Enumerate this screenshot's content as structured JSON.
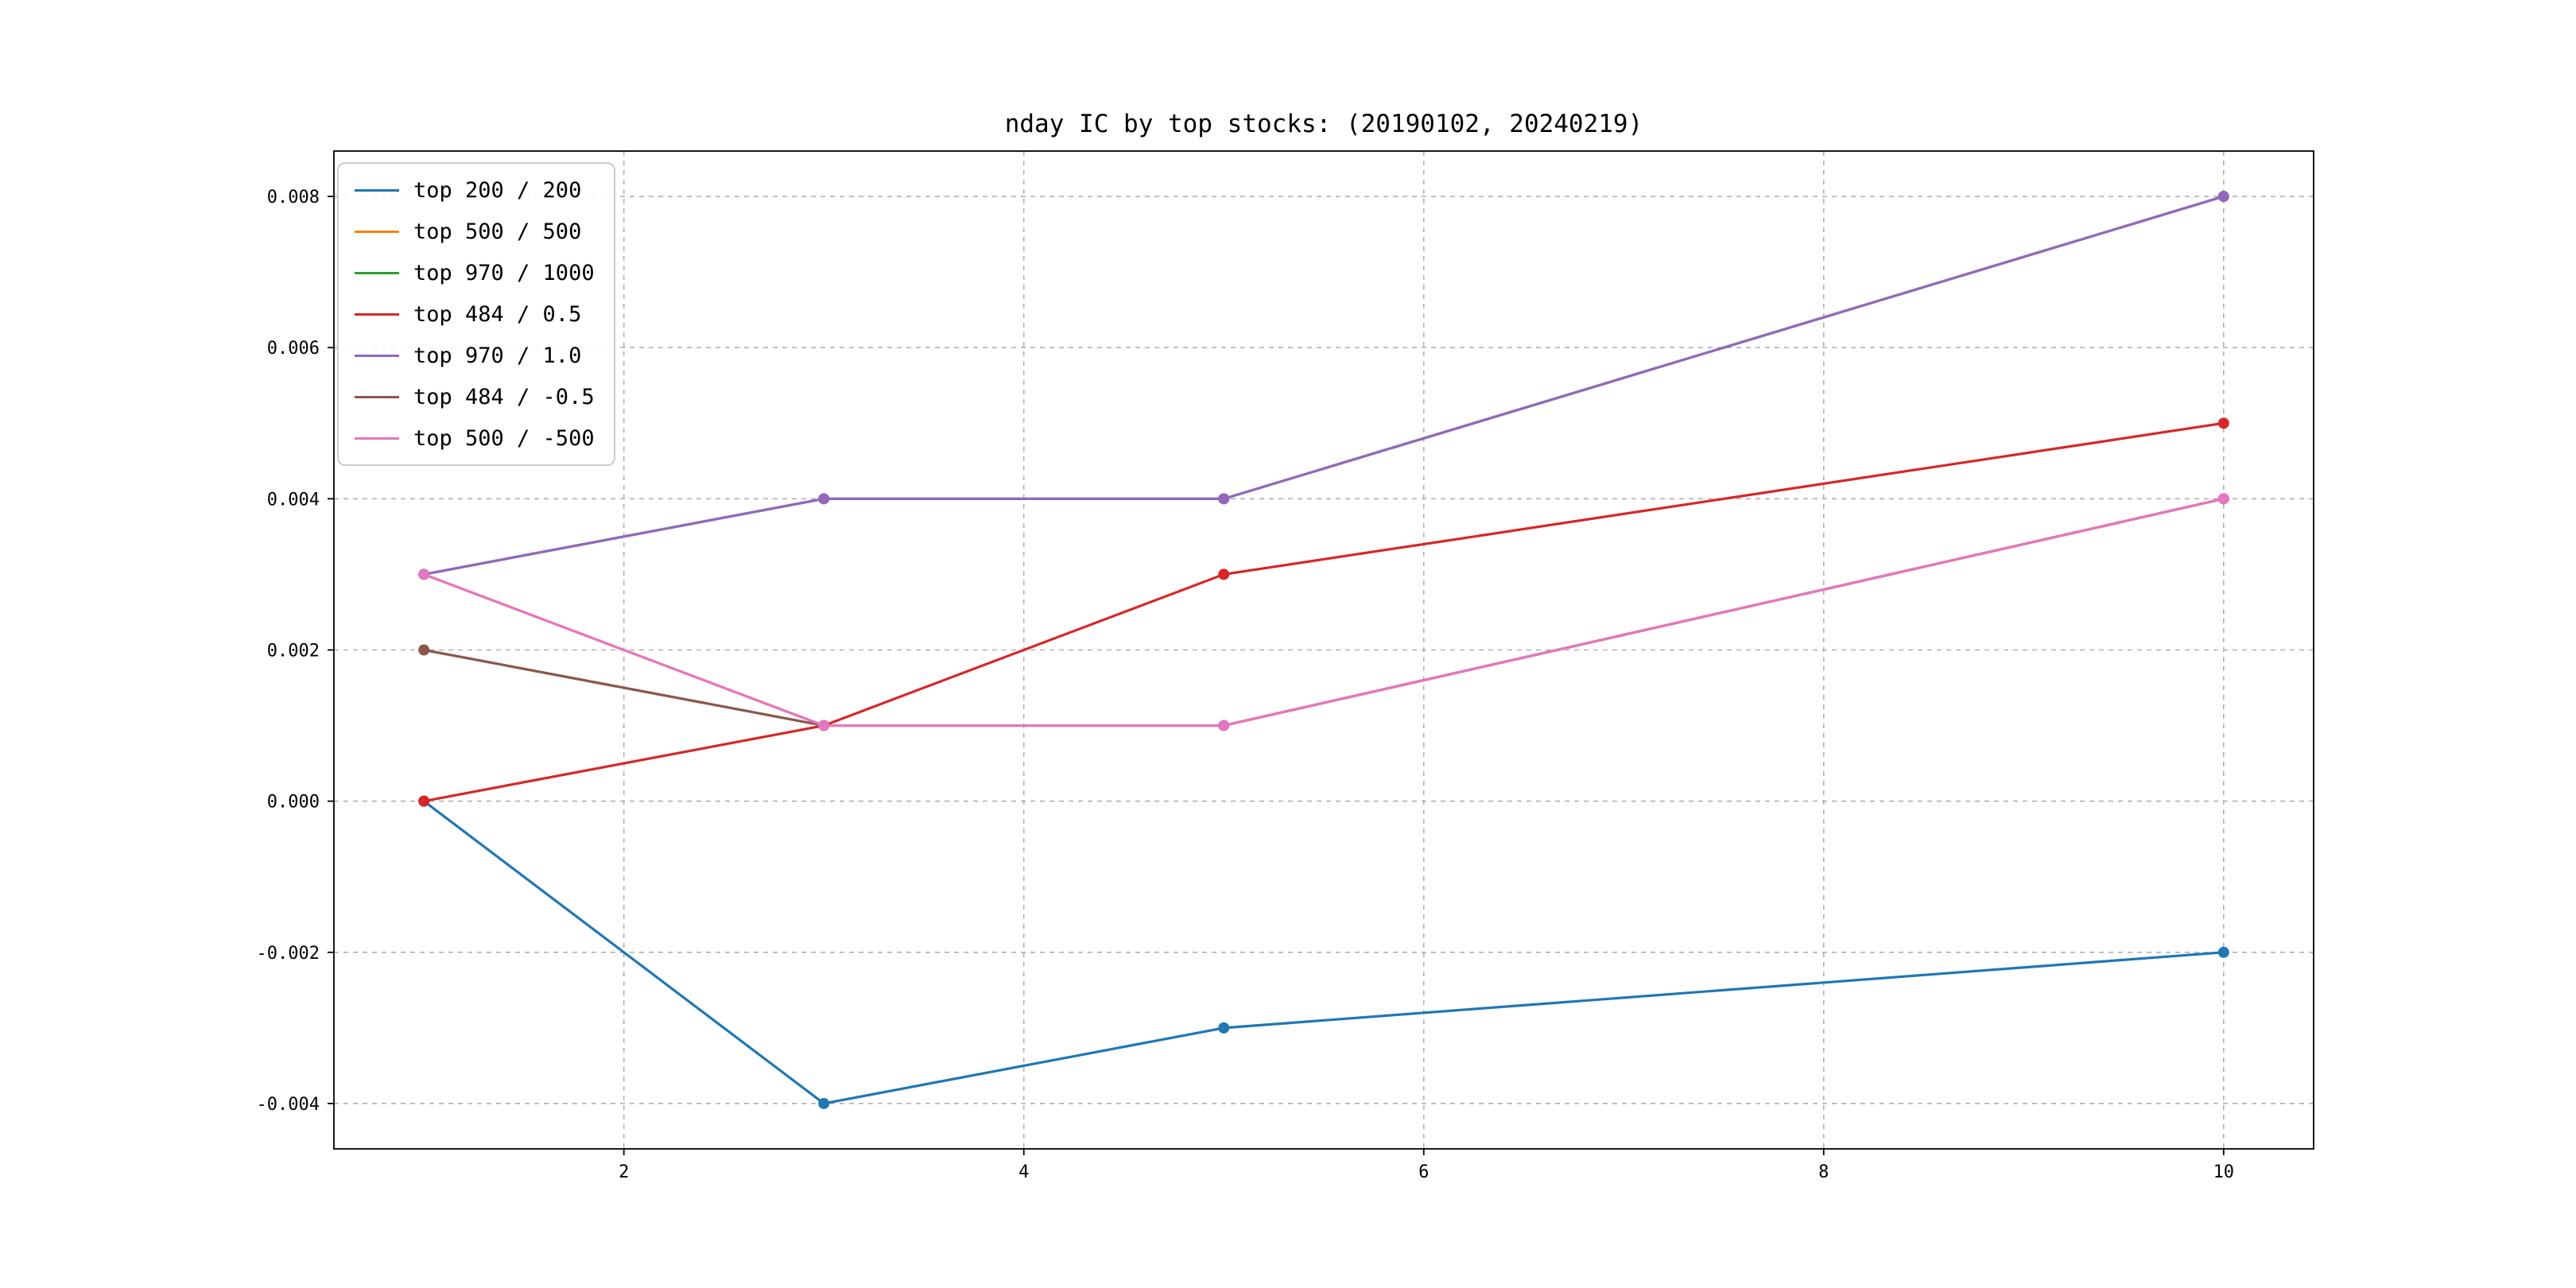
{
  "title": "nday IC by top stocks: (20190102, 20240219)",
  "chart_data": {
    "type": "line",
    "title": "nday IC by top stocks: (20190102, 20240219)",
    "xlabel": "",
    "ylabel": "",
    "x": [
      1,
      3,
      5,
      10
    ],
    "xlim": [
      0.55,
      10.45
    ],
    "ylim": [
      -0.0046,
      0.0086
    ],
    "xticks": [
      2,
      4,
      6,
      8,
      10
    ],
    "xtick_labels": [
      "2",
      "4",
      "6",
      "8",
      "10"
    ],
    "yticks": [
      -0.004,
      -0.002,
      0.0,
      0.002,
      0.004,
      0.006,
      0.008
    ],
    "ytick_labels": [
      "-0.004",
      "-0.002",
      "0.000",
      "0.002",
      "0.004",
      "0.006",
      "0.008"
    ],
    "grid": true,
    "grid_style": "dashed",
    "legend_position": "upper-left",
    "marker": "circle",
    "series": [
      {
        "name": "top 200 / 200",
        "color": "#1f77b4",
        "values": [
          0.0,
          -0.004,
          -0.003,
          -0.002
        ]
      },
      {
        "name": "top 500 / 500",
        "color": "#ff7f0e",
        "values": [
          0.003,
          0.001,
          0.001,
          0.004
        ]
      },
      {
        "name": "top 970 / 1000",
        "color": "#2ca02c",
        "values": [
          0.003,
          0.004,
          0.004,
          0.008
        ]
      },
      {
        "name": "top 484 / 0.5",
        "color": "#d62728",
        "values": [
          0.0,
          0.001,
          0.003,
          0.005
        ]
      },
      {
        "name": "top 970 / 1.0",
        "color": "#9467bd",
        "values": [
          0.003,
          0.004,
          0.004,
          0.008
        ]
      },
      {
        "name": "top 484 / -0.5",
        "color": "#8c564b",
        "values": [
          0.002,
          0.001,
          0.001,
          0.004
        ]
      },
      {
        "name": "top 500 / -500",
        "color": "#e377c2",
        "values": [
          0.003,
          0.001,
          0.001,
          0.004
        ]
      }
    ],
    "colors": {
      "grid": "#b0b0b0",
      "spine": "#000000",
      "background": "#ffffff"
    }
  }
}
